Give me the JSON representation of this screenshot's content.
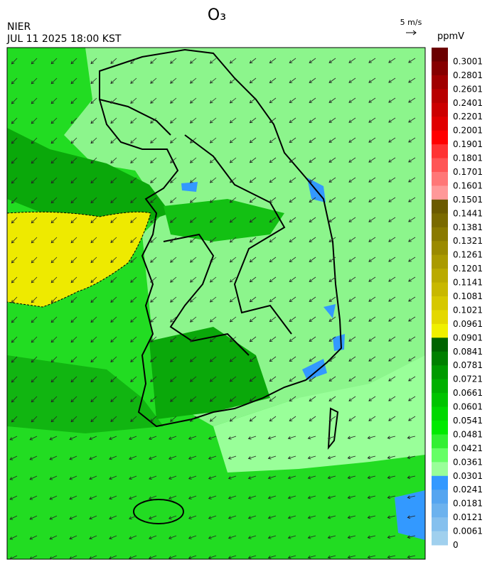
{
  "header": {
    "title": "O₃",
    "agency": "NIER",
    "datetime": "JUL 11 2025 18:00 KST",
    "wind_scale": "5 m/s"
  },
  "colorbar": {
    "unit": "ppmV",
    "ticks": [
      0.3001,
      0.2801,
      0.2601,
      0.2401,
      0.2201,
      0.2001,
      0.1901,
      0.1801,
      0.1701,
      0.1601,
      0.1501,
      0.1441,
      0.1381,
      0.1321,
      0.1261,
      0.1201,
      0.1141,
      0.1081,
      0.1021,
      0.0961,
      0.0901,
      0.0841,
      0.0781,
      0.0721,
      0.0661,
      0.0601,
      0.0541,
      0.0481,
      0.0421,
      0.0361,
      0.0301,
      0.0241,
      0.0181,
      0.0121,
      0.0061,
      0
    ],
    "colors": [
      "#6b0000",
      "#860000",
      "#a00000",
      "#b80000",
      "#cc0000",
      "#e00000",
      "#ff0000",
      "#ff3333",
      "#ff5555",
      "#ff7777",
      "#ff9999",
      "#6b5a00",
      "#7a6a00",
      "#8a7a00",
      "#9a8a00",
      "#aa9a00",
      "#baaa00",
      "#c8b800",
      "#d6c800",
      "#e4d800",
      "#f0f000",
      "#006400",
      "#008000",
      "#009a00",
      "#00b000",
      "#00c400",
      "#00d800",
      "#00ea00",
      "#33f033",
      "#66ff66",
      "#99ff99",
      "#3399ff",
      "#55a5f0",
      "#6cb2ee",
      "#85c0ee",
      "#a0d0ee"
    ]
  }
}
